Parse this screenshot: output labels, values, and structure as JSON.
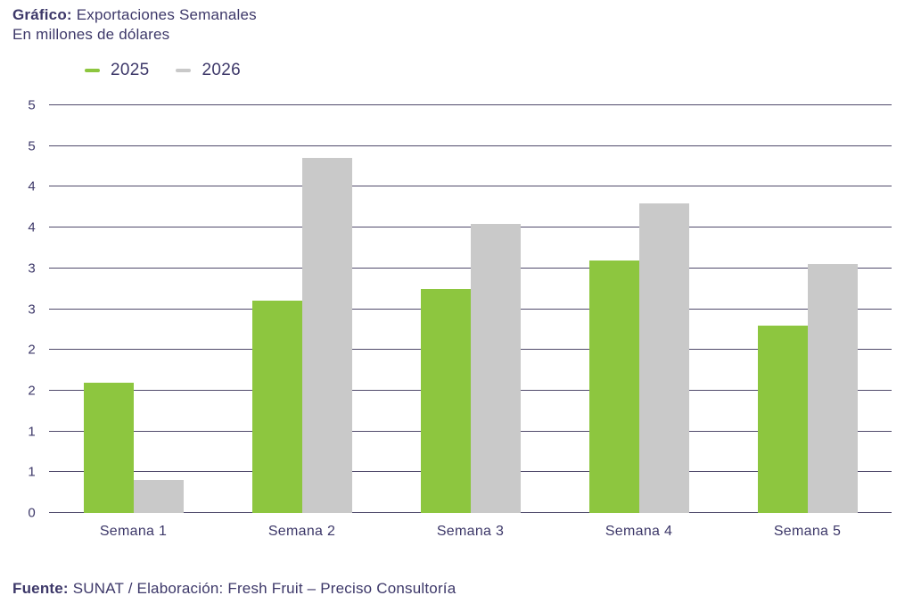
{
  "header": {
    "title_bold": "Gráfico:",
    "title_rest": " Exportaciones Semanales",
    "subtitle": "En millones de dólares"
  },
  "legend": [
    {
      "label": "2025",
      "color": "#8dc63f"
    },
    {
      "label": "2026",
      "color": "#c9c9c9"
    }
  ],
  "footer": {
    "bold": "Fuente:",
    "rest": " SUNAT / Elaboración: Fresh Fruit – Preciso Consultoría"
  },
  "colors": {
    "text": "#3d3869",
    "gridline": "#504a6b",
    "background": "#ffffff"
  },
  "chart_data": {
    "type": "bar",
    "title": "Gráfico: Exportaciones Semanales",
    "subtitle": "En millones de dólares",
    "categories": [
      "Semana 1",
      "Semana 2",
      "Semana 3",
      "Semana 4",
      "Semana 5"
    ],
    "series": [
      {
        "name": "2025",
        "color": "#8dc63f",
        "values": [
          1.6,
          2.6,
          2.75,
          3.1,
          2.3
        ]
      },
      {
        "name": "2026",
        "color": "#c9c9c9",
        "values": [
          0.4,
          4.35,
          3.55,
          3.8,
          3.05
        ]
      }
    ],
    "xlabel": "",
    "ylabel": "",
    "ylim": [
      0,
      5
    ],
    "y_tick_step": 0.5,
    "y_tick_labels": [
      "0",
      "1",
      "1",
      "2",
      "2",
      "3",
      "3",
      "4",
      "4",
      "5",
      "5"
    ],
    "grid": true,
    "legend_position": "top-left"
  }
}
